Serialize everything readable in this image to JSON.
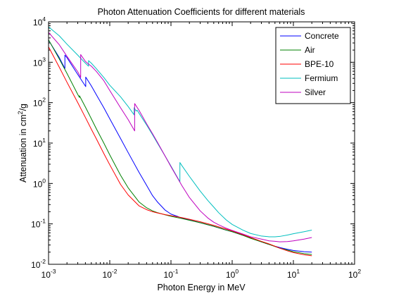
{
  "chart_data": {
    "type": "line",
    "title": "Photon Attenuation Coefficients for different materials",
    "xlabel": "Photon Energy in MeV",
    "ylabel": "Attenuation in cm",
    "ylabel_sup": "2",
    "ylabel_tail": "/g",
    "x_scale": "log",
    "y_scale": "log",
    "xlim": [
      0.001,
      100
    ],
    "ylim": [
      0.01,
      10000
    ],
    "x_ticks": [
      {
        "value": 0.001,
        "base": "10",
        "exp": "-3"
      },
      {
        "value": 0.01,
        "base": "10",
        "exp": "-2"
      },
      {
        "value": 0.1,
        "base": "10",
        "exp": "-1"
      },
      {
        "value": 1,
        "base": "10",
        "exp": "0"
      },
      {
        "value": 10,
        "base": "10",
        "exp": "1"
      },
      {
        "value": 100,
        "base": "10",
        "exp": "2"
      }
    ],
    "y_ticks": [
      {
        "value": 0.01,
        "base": "10",
        "exp": "-2"
      },
      {
        "value": 0.1,
        "base": "10",
        "exp": "-1"
      },
      {
        "value": 1,
        "base": "10",
        "exp": "0"
      },
      {
        "value": 10,
        "base": "10",
        "exp": "1"
      },
      {
        "value": 100,
        "base": "10",
        "exp": "2"
      },
      {
        "value": 1000,
        "base": "10",
        "exp": "3"
      },
      {
        "value": 10000,
        "base": "10",
        "exp": "4"
      }
    ],
    "grid": false,
    "legend_position": "top-right",
    "series": [
      {
        "name": "Concrete",
        "color": "#0000ff",
        "points": [
          [
            0.001,
            3500
          ],
          [
            0.0015,
            1300
          ],
          [
            0.00185,
            700
          ],
          [
            0.00185,
            1500
          ],
          [
            0.002,
            1300
          ],
          [
            0.003,
            500
          ],
          [
            0.00405,
            250
          ],
          [
            0.00405,
            430
          ],
          [
            0.005,
            260
          ],
          [
            0.006,
            160
          ],
          [
            0.008,
            75
          ],
          [
            0.01,
            40
          ],
          [
            0.015,
            13
          ],
          [
            0.02,
            5.8
          ],
          [
            0.03,
            1.9
          ],
          [
            0.04,
            0.9
          ],
          [
            0.05,
            0.5
          ],
          [
            0.06,
            0.35
          ],
          [
            0.08,
            0.22
          ],
          [
            0.1,
            0.175
          ],
          [
            0.15,
            0.14
          ],
          [
            0.2,
            0.125
          ],
          [
            0.3,
            0.107
          ],
          [
            0.5,
            0.087
          ],
          [
            0.8,
            0.07
          ],
          [
            1,
            0.064
          ],
          [
            1.5,
            0.052
          ],
          [
            2,
            0.045
          ],
          [
            3,
            0.036
          ],
          [
            4,
            0.031
          ],
          [
            5,
            0.028
          ],
          [
            6,
            0.026
          ],
          [
            8,
            0.0235
          ],
          [
            10,
            0.022
          ],
          [
            15,
            0.0205
          ],
          [
            20,
            0.02
          ]
        ]
      },
      {
        "name": "Air",
        "color": "#008000",
        "points": [
          [
            0.001,
            3600
          ],
          [
            0.0015,
            1200
          ],
          [
            0.002,
            530
          ],
          [
            0.003,
            160
          ],
          [
            0.0032,
            135
          ],
          [
            0.0032,
            148
          ],
          [
            0.004,
            78
          ],
          [
            0.005,
            40
          ],
          [
            0.006,
            23
          ],
          [
            0.008,
            10
          ],
          [
            0.01,
            5.1
          ],
          [
            0.015,
            1.6
          ],
          [
            0.02,
            0.78
          ],
          [
            0.03,
            0.35
          ],
          [
            0.04,
            0.25
          ],
          [
            0.05,
            0.21
          ],
          [
            0.06,
            0.19
          ],
          [
            0.08,
            0.168
          ],
          [
            0.1,
            0.154
          ],
          [
            0.15,
            0.136
          ],
          [
            0.2,
            0.123
          ],
          [
            0.3,
            0.107
          ],
          [
            0.5,
            0.087
          ],
          [
            0.8,
            0.07
          ],
          [
            1,
            0.064
          ],
          [
            1.5,
            0.052
          ],
          [
            2,
            0.044
          ],
          [
            3,
            0.036
          ],
          [
            4,
            0.031
          ],
          [
            5,
            0.0275
          ],
          [
            6,
            0.025
          ],
          [
            8,
            0.0224
          ],
          [
            10,
            0.0205
          ],
          [
            15,
            0.0184
          ],
          [
            20,
            0.0175
          ]
        ]
      },
      {
        "name": "BPE-10",
        "color": "#ff0000",
        "points": [
          [
            0.001,
            2400
          ],
          [
            0.0015,
            750
          ],
          [
            0.002,
            320
          ],
          [
            0.003,
            100
          ],
          [
            0.004,
            43
          ],
          [
            0.005,
            22
          ],
          [
            0.006,
            13
          ],
          [
            0.008,
            5.5
          ],
          [
            0.01,
            2.9
          ],
          [
            0.015,
            0.95
          ],
          [
            0.02,
            0.52
          ],
          [
            0.03,
            0.28
          ],
          [
            0.04,
            0.225
          ],
          [
            0.05,
            0.2
          ],
          [
            0.06,
            0.187
          ],
          [
            0.08,
            0.17
          ],
          [
            0.1,
            0.16
          ],
          [
            0.15,
            0.143
          ],
          [
            0.2,
            0.13
          ],
          [
            0.3,
            0.113
          ],
          [
            0.5,
            0.092
          ],
          [
            0.8,
            0.074
          ],
          [
            1,
            0.067
          ],
          [
            1.5,
            0.054
          ],
          [
            2,
            0.046
          ],
          [
            3,
            0.037
          ],
          [
            4,
            0.032
          ],
          [
            5,
            0.028
          ],
          [
            6,
            0.025
          ],
          [
            8,
            0.0215
          ],
          [
            10,
            0.0195
          ],
          [
            15,
            0.0172
          ],
          [
            20,
            0.0163
          ]
        ]
      },
      {
        "name": "Fermium",
        "color": "#00bfbf",
        "points": [
          [
            0.001,
            7500
          ],
          [
            0.0015,
            4500
          ],
          [
            0.002,
            2800
          ],
          [
            0.003,
            1500
          ],
          [
            0.004,
            950
          ],
          [
            0.0045,
            800
          ],
          [
            0.0045,
            1100
          ],
          [
            0.005,
            950
          ],
          [
            0.006,
            700
          ],
          [
            0.008,
            420
          ],
          [
            0.01,
            270
          ],
          [
            0.015,
            140
          ],
          [
            0.02,
            80
          ],
          [
            0.025,
            50
          ],
          [
            0.025,
            75
          ],
          [
            0.027,
            62
          ],
          [
            0.028,
            65
          ],
          [
            0.03,
            55
          ],
          [
            0.04,
            28
          ],
          [
            0.05,
            16
          ],
          [
            0.06,
            10
          ],
          [
            0.08,
            4.8
          ],
          [
            0.1,
            2.7
          ],
          [
            0.14,
            1.1
          ],
          [
            0.14,
            3.3
          ],
          [
            0.15,
            2.8
          ],
          [
            0.2,
            1.5
          ],
          [
            0.3,
            0.65
          ],
          [
            0.4,
            0.38
          ],
          [
            0.5,
            0.26
          ],
          [
            0.6,
            0.19
          ],
          [
            0.8,
            0.125
          ],
          [
            1,
            0.097
          ],
          [
            1.5,
            0.07
          ],
          [
            2,
            0.058
          ],
          [
            3,
            0.05
          ],
          [
            4,
            0.048
          ],
          [
            5,
            0.048
          ],
          [
            6,
            0.049
          ],
          [
            8,
            0.053
          ],
          [
            10,
            0.057
          ],
          [
            15,
            0.064
          ],
          [
            20,
            0.07
          ]
        ]
      },
      {
        "name": "Silver",
        "color": "#bf00bf",
        "points": [
          [
            0.001,
            5500
          ],
          [
            0.0015,
            2700
          ],
          [
            0.002,
            1400
          ],
          [
            0.003,
            580
          ],
          [
            0.00335,
            420
          ],
          [
            0.00335,
            1250
          ],
          [
            0.00335,
            1550
          ],
          [
            0.0035,
            1400
          ],
          [
            0.004,
            1050
          ],
          [
            0.0045,
            900
          ],
          [
            0.005,
            800
          ],
          [
            0.006,
            600
          ],
          [
            0.008,
            350
          ],
          [
            0.01,
            200
          ],
          [
            0.015,
            75
          ],
          [
            0.02,
            38
          ],
          [
            0.0255,
            20
          ],
          [
            0.0255,
            95
          ],
          [
            0.03,
            65
          ],
          [
            0.04,
            30
          ],
          [
            0.05,
            17
          ],
          [
            0.06,
            10.5
          ],
          [
            0.08,
            4.8
          ],
          [
            0.1,
            2.6
          ],
          [
            0.15,
            0.9
          ],
          [
            0.2,
            0.45
          ],
          [
            0.3,
            0.21
          ],
          [
            0.4,
            0.14
          ],
          [
            0.5,
            0.11
          ],
          [
            0.6,
            0.095
          ],
          [
            0.8,
            0.078
          ],
          [
            1,
            0.069
          ],
          [
            1.5,
            0.056
          ],
          [
            2,
            0.048
          ],
          [
            3,
            0.042
          ],
          [
            4,
            0.038
          ],
          [
            5,
            0.037
          ],
          [
            6,
            0.036
          ],
          [
            8,
            0.0365
          ],
          [
            10,
            0.038
          ],
          [
            15,
            0.042
          ],
          [
            20,
            0.046
          ]
        ]
      }
    ]
  }
}
